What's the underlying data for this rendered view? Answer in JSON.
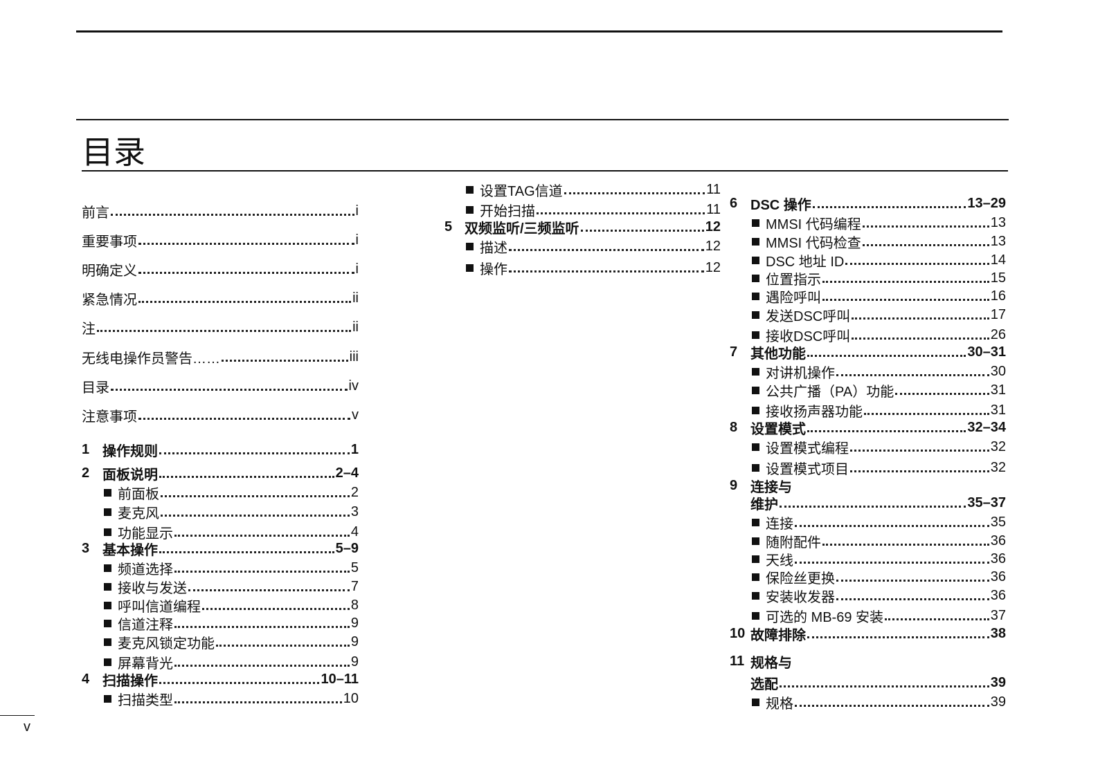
{
  "header": {
    "title": "目录"
  },
  "footer": {
    "page_number": "v"
  },
  "columns": [
    [
      {
        "type": "plain",
        "text": "前言",
        "page": "i"
      },
      {
        "type": "plain",
        "text": "重要事项",
        "page": "i"
      },
      {
        "type": "plain",
        "text": "明确定义",
        "page": "i"
      },
      {
        "type": "plain",
        "text": "紧急情况",
        "page": "ii"
      },
      {
        "type": "plain",
        "text": "注",
        "page": "ii"
      },
      {
        "type": "plain",
        "text": "无线电操作员警告…… ",
        "page": "iii"
      },
      {
        "type": "plain",
        "text": "目录",
        "page": "iv"
      },
      {
        "type": "plain",
        "text": "注意事项",
        "page": "v"
      },
      {
        "type": "section",
        "num": "1",
        "text": "操作规则",
        "page": "1"
      },
      {
        "type": "section",
        "num": "2",
        "text": "面板说明",
        "page": "2–4"
      },
      {
        "type": "sub",
        "text": "前面板",
        "page": "2"
      },
      {
        "type": "sub",
        "text": "麦克风",
        "page": "3"
      },
      {
        "type": "sub",
        "text": "功能显示",
        "page": "4"
      },
      {
        "type": "section",
        "num": "3",
        "text": "基本操作",
        "page": "5–9"
      },
      {
        "type": "sub",
        "text": "频道选择",
        "page": "5"
      },
      {
        "type": "sub",
        "text": "接收与发送",
        "page": "7"
      },
      {
        "type": "sub",
        "text": "呼叫信道编程",
        "page": "8"
      },
      {
        "type": "sub",
        "text": "信道注释",
        "page": "9"
      },
      {
        "type": "sub",
        "text": "麦克风锁定功能",
        "page": "9"
      },
      {
        "type": "sub",
        "text": "屏幕背光",
        "page": "9"
      },
      {
        "type": "section",
        "num": "4",
        "text": "扫描操作",
        "page": "10–11"
      },
      {
        "type": "sub",
        "text": "扫描类型",
        "page": "10"
      }
    ],
    [
      {
        "type": "sub",
        "text": "设置TAG信道",
        "page": "11"
      },
      {
        "type": "sub",
        "text": "开始扫描",
        "page": "11"
      },
      {
        "type": "section",
        "num": "5",
        "text": "双频监听/三频监听",
        "page": "12"
      },
      {
        "type": "sub",
        "text": "描述",
        "page": "12"
      },
      {
        "type": "sub",
        "text": "操作",
        "page": "12"
      }
    ],
    [
      {
        "type": "section",
        "num": "6",
        "text": "DSC 操作",
        "page": "13–29"
      },
      {
        "type": "sub",
        "text": "MMSI 代码编程",
        "page": "13"
      },
      {
        "type": "sub",
        "text": "MMSI 代码检查",
        "page": "13"
      },
      {
        "type": "sub",
        "text": "DSC 地址 ID",
        "page": "14"
      },
      {
        "type": "sub",
        "text": "位置指示",
        "page": "15"
      },
      {
        "type": "sub",
        "text": "遇险呼叫",
        "page": "16"
      },
      {
        "type": "sub",
        "text": "发送DSC呼叫",
        "page": "17"
      },
      {
        "type": "sub",
        "text": "接收DSC呼叫",
        "page": "26"
      },
      {
        "type": "section",
        "num": "7",
        "text": "其他功能",
        "page": "30–31"
      },
      {
        "type": "sub",
        "text": "对讲机操作",
        "page": "30"
      },
      {
        "type": "sub",
        "text": "公共广播（PA）功能",
        "page": "31"
      },
      {
        "type": "sub",
        "text": "接收扬声器功能",
        "page": "31"
      },
      {
        "type": "section",
        "num": "8",
        "text": "设置模式",
        "page": "32–34"
      },
      {
        "type": "sub",
        "text": "设置模式编程",
        "page": "32"
      },
      {
        "type": "sub",
        "text": "设置模式项目",
        "page": "32"
      },
      {
        "type": "section",
        "num": "9",
        "text": "连接与"
      },
      {
        "type": "section",
        "text": "维护",
        "page": "35–37"
      },
      {
        "type": "sub",
        "text": "连接",
        "page": "35"
      },
      {
        "type": "sub",
        "text": "随附配件",
        "page": "36"
      },
      {
        "type": "sub",
        "text": "天线",
        "page": "36"
      },
      {
        "type": "sub",
        "text": "保险丝更换",
        "page": "36"
      },
      {
        "type": "sub",
        "text": "安装收发器",
        "page": "36"
      },
      {
        "type": "sub",
        "text": "可选的 MB-69 安装",
        "page": "37"
      },
      {
        "type": "section",
        "num": "10",
        "text": "故障排除",
        "page": "38"
      },
      {
        "type": "section",
        "num": "11",
        "text": "规格与"
      },
      {
        "type": "section",
        "text": "选配",
        "page": "39"
      },
      {
        "type": "sub",
        "text": "规格",
        "page": "39"
      }
    ]
  ]
}
